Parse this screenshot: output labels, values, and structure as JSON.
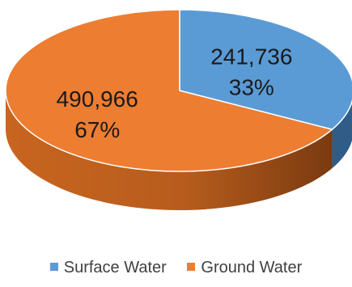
{
  "chart_data": {
    "type": "pie",
    "title": "",
    "labels": [
      "Surface Water",
      "Ground Water"
    ],
    "values": [
      241736,
      490966
    ],
    "value_labels": [
      "241,736",
      "490,966"
    ],
    "percent_labels": [
      "33%",
      "67%"
    ],
    "colors": [
      "#5b9bd5",
      "#ed7d31"
    ],
    "side_colors": [
      "#2f5d87",
      "#a4531c"
    ],
    "style": "3d",
    "legend_position": "bottom"
  }
}
